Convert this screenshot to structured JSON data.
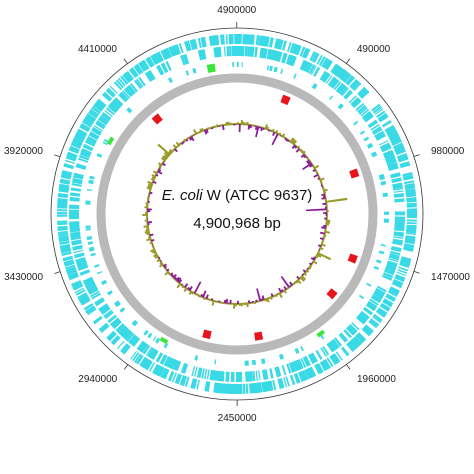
{
  "map": {
    "species": "E. coli",
    "strain": "W (ATCC 9637)",
    "genome_length": {
      "value": 4900968,
      "label": "4,900,968 bp"
    },
    "ticks": [
      4900000,
      490000,
      980000,
      1470000,
      1960000,
      2450000,
      2940000,
      3430000,
      3920000,
      4410000
    ]
  }
}
